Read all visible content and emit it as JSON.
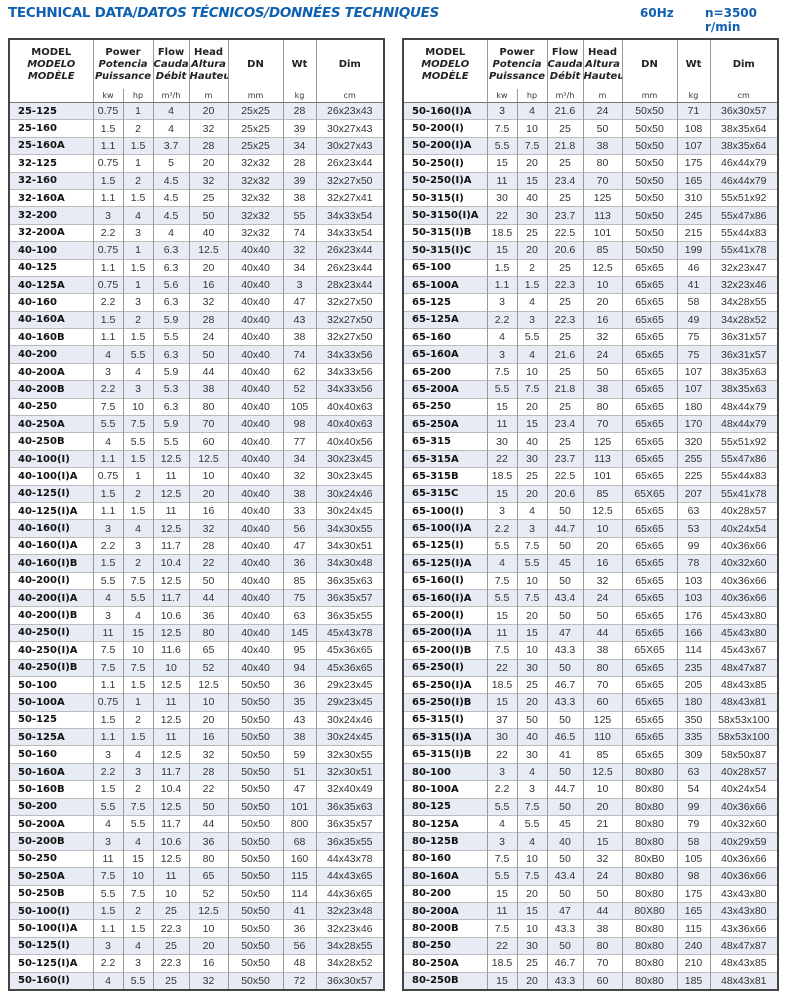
{
  "header": {
    "title_plain": "TECHNICAL DATA/",
    "title_italic": "DATOS TÉCNICOS/DONNÉES TECHNIQUES",
    "frequency": "60Hz",
    "speed": "n=3500 r/min"
  },
  "colors": {
    "title": "#1060b0",
    "row_shade": "#e7ebf3",
    "border": "#444444"
  },
  "columns": {
    "model": [
      "MODEL",
      "MODELO",
      "MODÈLE"
    ],
    "power": [
      "Power",
      "Potencia",
      "Puissance"
    ],
    "flow": [
      "Flow",
      "Caudal",
      "Débit"
    ],
    "head": [
      "Head",
      "Altura",
      "Hauteur"
    ],
    "dn": "DN",
    "wt": "Wt",
    "dim": "Dim",
    "units": [
      "kw",
      "hp",
      "m³/h",
      "m",
      "mm",
      "kg",
      "cm"
    ]
  },
  "tables": [
    {
      "rows": [
        [
          "25-125",
          "0.75",
          "1",
          "4",
          "20",
          "25x25",
          "28",
          "26x23x43"
        ],
        [
          "25-160",
          "1.5",
          "2",
          "4",
          "32",
          "25x25",
          "39",
          "30x27x43"
        ],
        [
          "25-160A",
          "1.1",
          "1.5",
          "3.7",
          "28",
          "25x25",
          "34",
          "30x27x43"
        ],
        [
          "32-125",
          "0.75",
          "1",
          "5",
          "20",
          "32x32",
          "28",
          "26x23x44"
        ],
        [
          "32-160",
          "1.5",
          "2",
          "4.5",
          "32",
          "32x32",
          "39",
          "32x27x50"
        ],
        [
          "32-160A",
          "1.1",
          "1.5",
          "4.5",
          "25",
          "32x32",
          "38",
          "32x27x41"
        ],
        [
          "32-200",
          "3",
          "4",
          "4.5",
          "50",
          "32x32",
          "55",
          "34x33x54"
        ],
        [
          "32-200A",
          "2.2",
          "3",
          "4",
          "40",
          "32x32",
          "74",
          "34x33x54"
        ],
        [
          "40-100",
          "0.75",
          "1",
          "6.3",
          "12.5",
          "40x40",
          "32",
          "26x23x44"
        ],
        [
          "40-125",
          "1.1",
          "1.5",
          "6.3",
          "20",
          "40x40",
          "34",
          "26x23x44"
        ],
        [
          "40-125A",
          "0.75",
          "1",
          "5.6",
          "16",
          "40x40",
          "3",
          "28x23x44"
        ],
        [
          "40-160",
          "2.2",
          "3",
          "6.3",
          "32",
          "40x40",
          "47",
          "32x27x50"
        ],
        [
          "40-160A",
          "1.5",
          "2",
          "5.9",
          "28",
          "40x40",
          "43",
          "32x27x50"
        ],
        [
          "40-160B",
          "1.1",
          "1.5",
          "5.5",
          "24",
          "40x40",
          "38",
          "32x27x50"
        ],
        [
          "40-200",
          "4",
          "5.5",
          "6.3",
          "50",
          "40x40",
          "74",
          "34x33x56"
        ],
        [
          "40-200A",
          "3",
          "4",
          "5.9",
          "44",
          "40x40",
          "62",
          "34x33x56"
        ],
        [
          "40-200B",
          "2.2",
          "3",
          "5.3",
          "38",
          "40x40",
          "52",
          "34x33x56"
        ],
        [
          "40-250",
          "7.5",
          "10",
          "6.3",
          "80",
          "40x40",
          "105",
          "40x40x63"
        ],
        [
          "40-250A",
          "5.5",
          "7.5",
          "5.9",
          "70",
          "40x40",
          "98",
          "40x40x63"
        ],
        [
          "40-250B",
          "4",
          "5.5",
          "5.5",
          "60",
          "40x40",
          "77",
          "40x40x56"
        ],
        [
          "40-100(I)",
          "1.1",
          "1.5",
          "12.5",
          "12.5",
          "40x40",
          "34",
          "30x23x45"
        ],
        [
          "40-100(I)A",
          "0.75",
          "1",
          "11",
          "10",
          "40x40",
          "32",
          "30x23x45"
        ],
        [
          "40-125(I)",
          "1.5",
          "2",
          "12.5",
          "20",
          "40x40",
          "38",
          "30x24x46"
        ],
        [
          "40-125(I)A",
          "1.1",
          "1.5",
          "11",
          "16",
          "40x40",
          "33",
          "30x24x45"
        ],
        [
          "40-160(I)",
          "3",
          "4",
          "12.5",
          "32",
          "40x40",
          "56",
          "34x30x55"
        ],
        [
          "40-160(I)A",
          "2.2",
          "3",
          "11.7",
          "28",
          "40x40",
          "47",
          "34x30x51"
        ],
        [
          "40-160(I)B",
          "1.5",
          "2",
          "10.4",
          "22",
          "40x40",
          "36",
          "34x30x48"
        ],
        [
          "40-200(I)",
          "5.5",
          "7.5",
          "12.5",
          "50",
          "40x40",
          "85",
          "36x35x63"
        ],
        [
          "40-200(I)A",
          "4",
          "5.5",
          "11.7",
          "44",
          "40x40",
          "75",
          "36x35x57"
        ],
        [
          "40-200(I)B",
          "3",
          "4",
          "10.6",
          "36",
          "40x40",
          "63",
          "36x35x55"
        ],
        [
          "40-250(I)",
          "11",
          "15",
          "12.5",
          "80",
          "40x40",
          "145",
          "45x43x78"
        ],
        [
          "40-250(I)A",
          "7.5",
          "10",
          "11.6",
          "65",
          "40x40",
          "95",
          "45x36x65"
        ],
        [
          "40-250(I)B",
          "7.5",
          "7.5",
          "10",
          "52",
          "40x40",
          "94",
          "45x36x65"
        ],
        [
          "50-100",
          "1.1",
          "1.5",
          "12.5",
          "12.5",
          "50x50",
          "36",
          "29x23x45"
        ],
        [
          "50-100A",
          "0.75",
          "1",
          "11",
          "10",
          "50x50",
          "35",
          "29x23x45"
        ],
        [
          "50-125",
          "1.5",
          "2",
          "12.5",
          "20",
          "50x50",
          "43",
          "30x24x46"
        ],
        [
          "50-125A",
          "1.1",
          "1.5",
          "11",
          "16",
          "50x50",
          "38",
          "30x24x45"
        ],
        [
          "50-160",
          "3",
          "4",
          "12.5",
          "32",
          "50x50",
          "59",
          "32x30x55"
        ],
        [
          "50-160A",
          "2.2",
          "3",
          "11.7",
          "28",
          "50x50",
          "51",
          "32x30x51"
        ],
        [
          "50-160B",
          "1.5",
          "2",
          "10.4",
          "22",
          "50x50",
          "47",
          "32x40x49"
        ],
        [
          "50-200",
          "5.5",
          "7.5",
          "12.5",
          "50",
          "50x50",
          "101",
          "36x35x63"
        ],
        [
          "50-200A",
          "4",
          "5.5",
          "11.7",
          "44",
          "50x50",
          "800",
          "36x35x57"
        ],
        [
          "50-200B",
          "3",
          "4",
          "10.6",
          "36",
          "50x50",
          "68",
          "36x35x55"
        ],
        [
          "50-250",
          "11",
          "15",
          "12.5",
          "80",
          "50x50",
          "160",
          "44x43x78"
        ],
        [
          "50-250A",
          "7.5",
          "10",
          "11",
          "65",
          "50x50",
          "115",
          "44x43x65"
        ],
        [
          "50-250B",
          "5.5",
          "7.5",
          "10",
          "52",
          "50x50",
          "114",
          "44x36x65"
        ],
        [
          "50-100(I)",
          "1.5",
          "2",
          "25",
          "12.5",
          "50x50",
          "41",
          "32x23x48"
        ],
        [
          "50-100(I)A",
          "1.1",
          "1.5",
          "22.3",
          "10",
          "50x50",
          "36",
          "32x23x46"
        ],
        [
          "50-125(I)",
          "3",
          "4",
          "25",
          "20",
          "50x50",
          "56",
          "34x28x55"
        ],
        [
          "50-125(I)A",
          "2.2",
          "3",
          "22.3",
          "16",
          "50x50",
          "48",
          "34x28x52"
        ],
        [
          "50-160(I)",
          "4",
          "5.5",
          "25",
          "32",
          "50x50",
          "72",
          "36x30x57"
        ]
      ]
    },
    {
      "rows": [
        [
          "50-160(I)A",
          "3",
          "4",
          "21.6",
          "24",
          "50x50",
          "71",
          "36x30x57"
        ],
        [
          "50-200(I)",
          "7.5",
          "10",
          "25",
          "50",
          "50x50",
          "108",
          "38x35x64"
        ],
        [
          "50-200(I)A",
          "5.5",
          "7.5",
          "21.8",
          "38",
          "50x50",
          "107",
          "38x35x64"
        ],
        [
          "50-250(I)",
          "15",
          "20",
          "25",
          "80",
          "50x50",
          "175",
          "46x44x79"
        ],
        [
          "50-250(I)A",
          "11",
          "15",
          "23.4",
          "70",
          "50x50",
          "165",
          "46x44x79"
        ],
        [
          "50-315(I)",
          "30",
          "40",
          "25",
          "125",
          "50x50",
          "310",
          "55x51x92"
        ],
        [
          "50-3150(I)A",
          "22",
          "30",
          "23.7",
          "113",
          "50x50",
          "245",
          "55x47x86"
        ],
        [
          "50-315(I)B",
          "18.5",
          "25",
          "22.5",
          "101",
          "50x50",
          "215",
          "55x44x83"
        ],
        [
          "50-315(I)C",
          "15",
          "20",
          "20.6",
          "85",
          "50x50",
          "199",
          "55x41x78"
        ],
        [
          "65-100",
          "1.5",
          "2",
          "25",
          "12.5",
          "65x65",
          "46",
          "32x23x47"
        ],
        [
          "65-100A",
          "1.1",
          "1.5",
          "22.3",
          "10",
          "65x65",
          "41",
          "32x23x46"
        ],
        [
          "65-125",
          "3",
          "4",
          "25",
          "20",
          "65x65",
          "58",
          "34x28x55"
        ],
        [
          "65-125A",
          "2.2",
          "3",
          "22.3",
          "16",
          "65x65",
          "49",
          "34x28x52"
        ],
        [
          "65-160",
          "4",
          "5.5",
          "25",
          "32",
          "65x65",
          "75",
          "36x31x57"
        ],
        [
          "65-160A",
          "3",
          "4",
          "21.6",
          "24",
          "65x65",
          "75",
          "36x31x57"
        ],
        [
          "65-200",
          "7.5",
          "10",
          "25",
          "50",
          "65x65",
          "107",
          "38x35x63"
        ],
        [
          "65-200A",
          "5.5",
          "7.5",
          "21.8",
          "38",
          "65x65",
          "107",
          "38x35x63"
        ],
        [
          "65-250",
          "15",
          "20",
          "25",
          "80",
          "65x65",
          "180",
          "48x44x79"
        ],
        [
          "65-250A",
          "11",
          "15",
          "23.4",
          "70",
          "65x65",
          "170",
          "48x44x79"
        ],
        [
          "65-315",
          "30",
          "40",
          "25",
          "125",
          "65x65",
          "320",
          "55x51x92"
        ],
        [
          "65-315A",
          "22",
          "30",
          "23.7",
          "113",
          "65x65",
          "255",
          "55x47x86"
        ],
        [
          "65-315B",
          "18.5",
          "25",
          "22.5",
          "101",
          "65x65",
          "225",
          "55x44x83"
        ],
        [
          "65-315C",
          "15",
          "20",
          "20.6",
          "85",
          "65X65",
          "207",
          "55x41x78"
        ],
        [
          "65-100(I)",
          "3",
          "4",
          "50",
          "12.5",
          "65x65",
          "63",
          "40x28x57"
        ],
        [
          "65-100(I)A",
          "2.2",
          "3",
          "44.7",
          "10",
          "65x65",
          "53",
          "40x24x54"
        ],
        [
          "65-125(I)",
          "5.5",
          "7.5",
          "50",
          "20",
          "65x65",
          "99",
          "40x36x66"
        ],
        [
          "65-125(I)A",
          "4",
          "5.5",
          "45",
          "16",
          "65x65",
          "78",
          "40x32x60"
        ],
        [
          "65-160(I)",
          "7.5",
          "10",
          "50",
          "32",
          "65x65",
          "103",
          "40x36x66"
        ],
        [
          "65-160(I)A",
          "5.5",
          "7.5",
          "43.4",
          "24",
          "65x65",
          "103",
          "40x36x66"
        ],
        [
          "65-200(I)",
          "15",
          "20",
          "50",
          "50",
          "65x65",
          "176",
          "45x43x80"
        ],
        [
          "65-200(I)A",
          "11",
          "15",
          "47",
          "44",
          "65x65",
          "166",
          "45x43x80"
        ],
        [
          "65-200(I)B",
          "7.5",
          "10",
          "43.3",
          "38",
          "65X65",
          "114",
          "45x43x67"
        ],
        [
          "65-250(I)",
          "22",
          "30",
          "50",
          "80",
          "65x65",
          "235",
          "48x47x87"
        ],
        [
          "65-250(I)A",
          "18.5",
          "25",
          "46.7",
          "70",
          "65x65",
          "205",
          "48x43x85"
        ],
        [
          "65-250(I)B",
          "15",
          "20",
          "43.3",
          "60",
          "65x65",
          "180",
          "48x43x81"
        ],
        [
          "65-315(I)",
          "37",
          "50",
          "50",
          "125",
          "65x65",
          "350",
          "58x53x100"
        ],
        [
          "65-315(I)A",
          "30",
          "40",
          "46.5",
          "110",
          "65x65",
          "335",
          "58x53x100"
        ],
        [
          "65-315(I)B",
          "22",
          "30",
          "41",
          "85",
          "65x65",
          "309",
          "58x50x87"
        ],
        [
          "80-100",
          "3",
          "4",
          "50",
          "12.5",
          "80x80",
          "63",
          "40x28x57"
        ],
        [
          "80-100A",
          "2.2",
          "3",
          "44.7",
          "10",
          "80x80",
          "54",
          "40x24x54"
        ],
        [
          "80-125",
          "5.5",
          "7.5",
          "50",
          "20",
          "80x80",
          "99",
          "40x36x66"
        ],
        [
          "80-125A",
          "4",
          "5.5",
          "45",
          "21",
          "80x80",
          "79",
          "40x32x60"
        ],
        [
          "80-125B",
          "3",
          "4",
          "40",
          "15",
          "80x80",
          "58",
          "40x29x59"
        ],
        [
          "80-160",
          "7.5",
          "10",
          "50",
          "32",
          "80xB0",
          "105",
          "40x36x66"
        ],
        [
          "80-160A",
          "5.5",
          "7.5",
          "43.4",
          "24",
          "80x80",
          "98",
          "40x36x66"
        ],
        [
          "80-200",
          "15",
          "20",
          "50",
          "50",
          "80x80",
          "175",
          "43x43x80"
        ],
        [
          "80-200A",
          "11",
          "15",
          "47",
          "44",
          "80X80",
          "165",
          "43x43x80"
        ],
        [
          "80-200B",
          "7.5",
          "10",
          "43.3",
          "38",
          "80x80",
          "115",
          "43x36x66"
        ],
        [
          "80-250",
          "22",
          "30",
          "50",
          "80",
          "80x80",
          "240",
          "48x47x87"
        ],
        [
          "80-250A",
          "18.5",
          "25",
          "46.7",
          "70",
          "80x80",
          "210",
          "48x43x85"
        ],
        [
          "80-250B",
          "15",
          "20",
          "43.3",
          "60",
          "80x80",
          "185",
          "48x43x81"
        ]
      ]
    }
  ]
}
